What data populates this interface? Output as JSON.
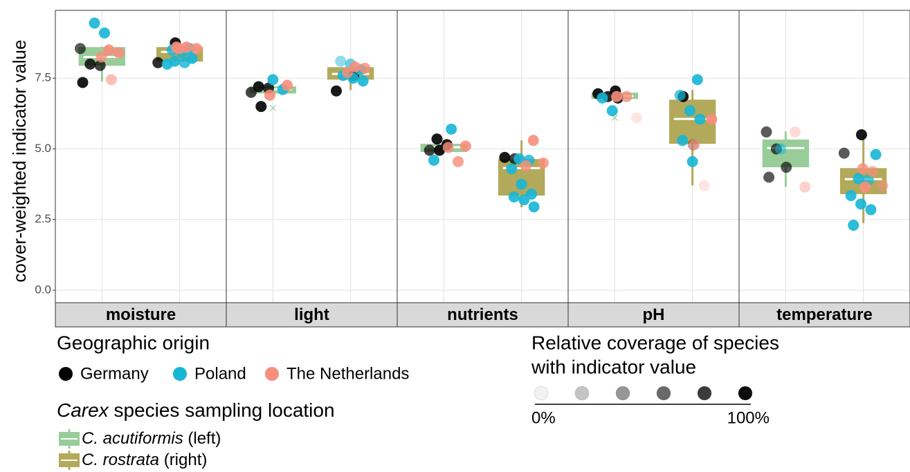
{
  "chart_data": {
    "type": "box",
    "y_label": "cover-weighted indicator value",
    "ylim": [
      -0.44,
      9.9
    ],
    "yticks": [
      {
        "value": 0,
        "label": "0.0"
      },
      2.5,
      {
        "value": 5,
        "label": "5.0"
      },
      7.5
    ],
    "grid": true,
    "origin_title": "Geographic origin",
    "origins": [
      {
        "name": "Germany",
        "color": "#000000"
      },
      {
        "name": "Poland",
        "color": "#16b6d6"
      },
      {
        "name": "The Netherlands",
        "color": "#f88e7c"
      }
    ],
    "species_title": [
      "Carex",
      " species sampling location"
    ],
    "species": [
      {
        "name": "C. acutiformis",
        "suffix": " (left)",
        "color": "#98cc98"
      },
      {
        "name": "C. rostrata",
        "suffix": " (right)",
        "color": "#b3a95a"
      }
    ],
    "coverage_title": [
      "Relative coverage of species",
      "with indicator value"
    ],
    "coverage_legend": {
      "values": [
        0,
        20,
        40,
        60,
        80,
        100
      ],
      "labels": [
        "0%",
        "100%"
      ]
    },
    "facets": [
      {
        "name": "moisture",
        "boxes": [
          {
            "q1": 7.94,
            "median": 8.25,
            "q3": 8.6,
            "low": 7.38,
            "high": 8.62,
            "outliers": [],
            "points": [
              {
                "values": [
                  8.55,
                  8.0,
                  7.95,
                  7.35
                ],
                "coverage": [
                  70,
                  90,
                  80,
                  100
                ]
              },
              {
                "values": [
                  9.45,
                  9.1
                ],
                "coverage": [
                  100,
                  100
                ]
              },
              {
                "values": [
                  8.5,
                  8.4,
                  8.25,
                  7.45
                ],
                "coverage": [
                  100,
                  100,
                  90,
                  60
                ]
              }
            ]
          },
          {
            "q1": 8.09,
            "median": 8.43,
            "q3": 8.6,
            "low": 8.09,
            "high": 8.6,
            "outliers": [],
            "points": [
              {
                "values": [
                  8.75,
                  8.05
                ],
                "coverage": [
                  100,
                  90
                ]
              },
              {
                "values": [
                  8.55,
                  8.5,
                  8.4,
                  8.2,
                  8.1,
                  8.05,
                  8.0
                ],
                "coverage": [
                  100,
                  90,
                  90,
                  100,
                  100,
                  90,
                  100
                ]
              },
              {
                "values": [
                  8.6,
                  8.6,
                  8.55,
                  8.55
                ],
                "coverage": [
                  100,
                  100,
                  100,
                  100
                ]
              }
            ]
          }
        ]
      },
      {
        "name": "light",
        "boxes": [
          {
            "q1": 6.96,
            "median": 7.11,
            "q3": 7.21,
            "low": 6.9,
            "high": 7.25,
            "outliers": [
              6.45
            ],
            "points": [
              {
                "values": [
                  7.2,
                  7.15,
                  7.0,
                  6.5
                ],
                "coverage": [
                  100,
                  90,
                  80,
                  100
                ]
              },
              {
                "values": [
                  7.45,
                  7.1
                ],
                "coverage": [
                  100,
                  100
                ]
              },
              {
                "values": [
                  7.25,
                  6.9
                ],
                "coverage": [
                  100,
                  100
                ]
              }
            ]
          },
          {
            "q1": 7.45,
            "median": 7.65,
            "q3": 7.89,
            "low": 7.08,
            "high": 7.9,
            "outliers": [],
            "points": [
              {
                "values": [
                  7.6,
                  7.05
                ],
                "coverage": [
                  100,
                  100
                ]
              },
              {
                "values": [
                  8.1,
                  8.0,
                  7.8,
                  7.6,
                  7.5,
                  7.4
                ],
                "coverage": [
                  50,
                  70,
                  100,
                  100,
                  100,
                  100
                ]
              },
              {
                "values": [
                  7.9,
                  7.85,
                  7.7
                ],
                "coverage": [
                  100,
                  90,
                  90
                ]
              }
            ]
          }
        ]
      },
      {
        "name": "nutrients",
        "boxes": [
          {
            "q1": 4.89,
            "median": 5.06,
            "q3": 5.18,
            "low": 4.89,
            "high": 5.3,
            "outliers": [],
            "points": [
              {
                "values": [
                  5.35,
                  5.15,
                  4.95,
                  4.95
                ],
                "coverage": [
                  100,
                  100,
                  80,
                  100
                ]
              },
              {
                "values": [
                  5.7,
                  4.6
                ],
                "coverage": [
                  100,
                  100
                ]
              },
              {
                "values": [
                  5.1,
                  5.05,
                  4.55
                ],
                "coverage": [
                  100,
                  90,
                  90
                ]
              }
            ]
          },
          {
            "q1": 3.35,
            "median": 4.32,
            "q3": 4.64,
            "low": 2.93,
            "high": 5.3,
            "outliers": [],
            "points": [
              {
                "values": [
                  4.7,
                  4.65
                ],
                "coverage": [
                  100,
                  80
                ]
              },
              {
                "values": [
                  4.65,
                  4.6,
                  4.3,
                  3.75,
                  3.4,
                  3.3,
                  3.2,
                  2.95
                ],
                "coverage": [
                  100,
                  90,
                  100,
                  100,
                  100,
                  100,
                  100,
                  100
                ]
              },
              {
                "values": [
                  5.3,
                  4.5,
                  4.4
                ],
                "coverage": [
                  100,
                  90,
                  90
                ]
              }
            ]
          }
        ]
      },
      {
        "name": "pH",
        "boxes": [
          {
            "q1": 6.77,
            "median": 6.87,
            "q3": 6.99,
            "low": 6.77,
            "high": 6.99,
            "outliers": [
              6.1
            ],
            "points": [
              {
                "values": [
                  7.05,
                  6.95,
                  6.85,
                  6.8
                ],
                "coverage": [
                  100,
                  100,
                  90,
                  100
                ]
              },
              {
                "values": [
                  6.8,
                  6.35
                ],
                "coverage": [
                  100,
                  100
                ]
              },
              {
                "values": [
                  6.85,
                  6.85,
                  6.1
                ],
                "coverage": [
                  100,
                  90,
                  20
                ]
              }
            ]
          },
          {
            "q1": 5.18,
            "median": 6.06,
            "q3": 6.74,
            "low": 3.71,
            "high": 7.09,
            "outliers": [],
            "points": [
              {
                "values": [
                  6.85,
                  5.15
                ],
                "coverage": [
                  100,
                  30
                ]
              },
              {
                "values": [
                  7.45,
                  6.9,
                  6.35,
                  6.05,
                  5.3,
                  4.55
                ],
                "coverage": [
                  100,
                  80,
                  100,
                  100,
                  100,
                  100
                ]
              },
              {
                "values": [
                  6.05,
                  5.15,
                  3.7
                ],
                "coverage": [
                  100,
                  70,
                  20
                ]
              }
            ]
          }
        ]
      },
      {
        "name": "temperature",
        "boxes": [
          {
            "q1": 4.35,
            "median": 5.03,
            "q3": 5.33,
            "low": 3.66,
            "high": 5.62,
            "outliers": [],
            "points": [
              {
                "values": [
                  5.6,
                  5.0,
                  4.35,
                  4.0
                ],
                "coverage": [
                  70,
                  70,
                  70,
                  70
                ]
              },
              {
                "values": [
                  5.0
                ],
                "coverage": [
                  60
                ]
              },
              {
                "values": [
                  5.6,
                  3.65
                ],
                "coverage": [
                  30,
                  40
                ]
              }
            ]
          },
          {
            "q1": 3.4,
            "median": 3.93,
            "q3": 4.32,
            "low": 2.37,
            "high": 5.47,
            "outliers": [],
            "points": [
              {
                "values": [
                  5.5,
                  4.85
                ],
                "coverage": [
                  100,
                  70
                ]
              },
              {
                "values": [
                  4.8,
                  3.95,
                  3.9,
                  3.35,
                  3.05,
                  2.85,
                  2.3
                ],
                "coverage": [
                  100,
                  100,
                  80,
                  100,
                  100,
                  100,
                  100
                ]
              },
              {
                "values": [
                  4.3,
                  4.2,
                  3.7,
                  3.65
                ],
                "coverage": [
                  90,
                  70,
                  60,
                  100
                ]
              }
            ]
          }
        ]
      }
    ]
  }
}
